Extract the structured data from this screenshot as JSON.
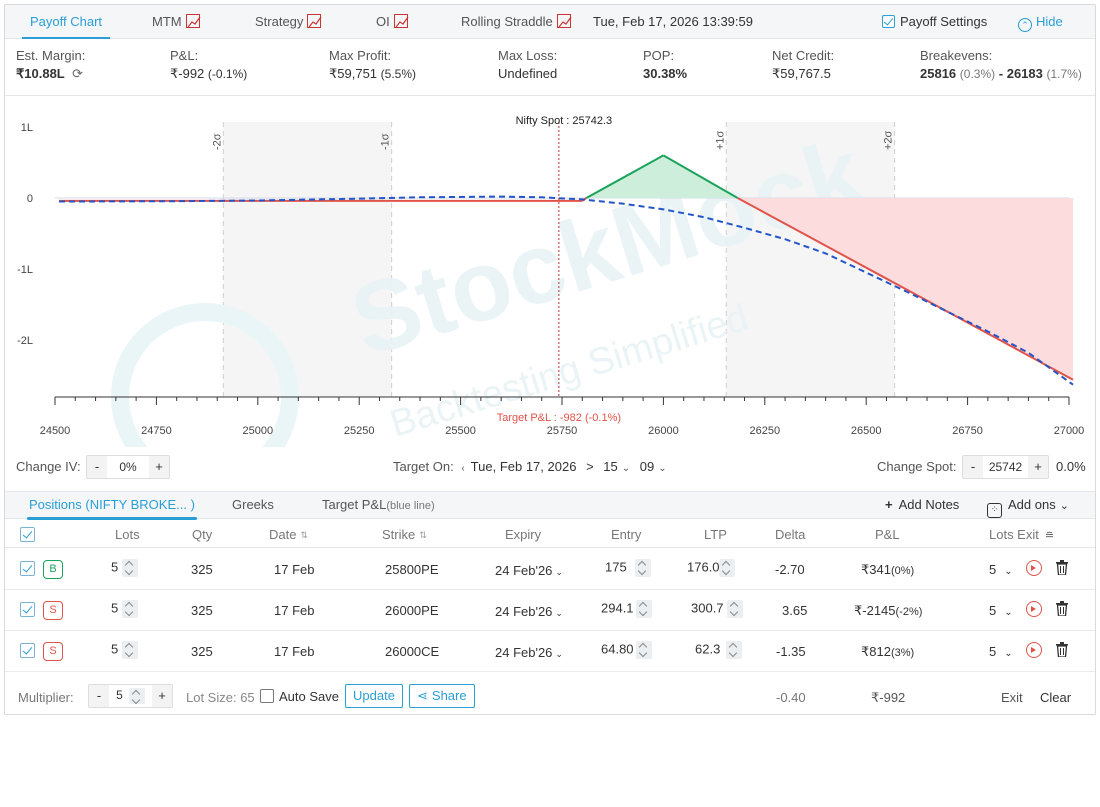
{
  "top_tabs": [
    {
      "label": "Payoff Chart"
    },
    {
      "label": "MTM"
    },
    {
      "label": "Strategy"
    },
    {
      "label": "OI"
    },
    {
      "label": "Rolling Straddle"
    }
  ],
  "datetime": "Tue, Feb 17, 2026 13:39:59",
  "payoff_settings_label": "Payoff Settings",
  "hide_label": "Hide",
  "stats": {
    "margin_label": "Est. Margin:",
    "margin_value": "₹10.88L",
    "pnl_label": "P&L:",
    "pnl_value": "₹-992",
    "pnl_pct": "(-0.1%)",
    "max_profit_label": "Max Profit:",
    "max_profit_value": "₹59,751",
    "max_profit_pct": "(5.5%)",
    "max_loss_label": "Max Loss:",
    "max_loss_value": "Undefined",
    "pop_label": "POP:",
    "pop_value": "30.38%",
    "net_credit_label": "Net Credit:",
    "net_credit_value": "₹59,767.5",
    "breakevens_label": "Breakevens:",
    "be_low": "25816",
    "be_low_pct": "(0.3%)",
    "be_sep": "-",
    "be_high": "26183",
    "be_high_pct": "(1.7%)"
  },
  "chart_data": {
    "type": "line",
    "spot_label": "Nifty Spot : 25742.3",
    "spot": 25742.3,
    "target_label": "Target P&L : -982 (-0.1%)",
    "x_ticks": [
      24500,
      24750,
      25000,
      25250,
      25500,
      25750,
      26000,
      26250,
      26500,
      26750,
      27000
    ],
    "y_ticks": [
      1,
      0,
      -1,
      -2
    ],
    "y_tick_labels": [
      "1L",
      "0",
      "-1L",
      "-2L"
    ],
    "xlim": [
      24500,
      27000
    ],
    "ylim": [
      -2.8,
      1.0
    ],
    "sigma_labels": [
      "-2σ",
      "-1σ",
      "+1σ",
      "+2σ"
    ],
    "sigma_x": [
      24915,
      25330,
      26155,
      26570
    ],
    "watermark": "StockMock",
    "watermark_sub": "Backtesting Simplified",
    "series": [
      {
        "values": [
          [
            24510,
            -0.04
          ],
          [
            25800,
            -0.04
          ],
          [
            25810,
            0.0
          ],
          [
            26000,
            0.6
          ],
          [
            26183,
            0.0
          ],
          [
            27010,
            -2.56
          ]
        ]
      },
      {
        "values": [
          [
            24510,
            -0.05
          ],
          [
            24800,
            -0.045
          ],
          [
            25000,
            -0.035
          ],
          [
            25200,
            -0.015
          ],
          [
            25400,
            0.01
          ],
          [
            25600,
            0.02
          ],
          [
            25700,
            0.01
          ],
          [
            25800,
            -0.02
          ],
          [
            25900,
            -0.08
          ],
          [
            26000,
            -0.16
          ],
          [
            26100,
            -0.27
          ],
          [
            26200,
            -0.42
          ],
          [
            26300,
            -0.58
          ],
          [
            26400,
            -0.78
          ],
          [
            26500,
            -1.05
          ],
          [
            26600,
            -1.32
          ],
          [
            26700,
            -1.6
          ],
          [
            26800,
            -1.88
          ],
          [
            26900,
            -2.18
          ],
          [
            27010,
            -2.63
          ]
        ]
      }
    ]
  },
  "controls": {
    "change_iv_label": "Change IV:",
    "iv_value": "0%",
    "target_on_label": "Target On:",
    "target_date": "Tue, Feb 17, 2026",
    "target_sep": ">",
    "target_hour": "15",
    "target_min": "09",
    "change_spot_label": "Change Spot:",
    "spot_value": "25742",
    "spot_pct": "0.0%",
    "minus": "-",
    "plus": "+"
  },
  "bottom_tabs": {
    "positions": "Positions (NIFTY BROKE... )",
    "greeks": "Greeks",
    "target_pnl": "Target P&L",
    "target_pnl_sub": "(blue line)",
    "add_notes": "Add Notes",
    "add_ons": "Add ons"
  },
  "table": {
    "headers": {
      "lots": "Lots",
      "qty": "Qty",
      "date": "Date",
      "strike": "Strike",
      "expiry": "Expiry",
      "entry": "Entry",
      "ltp": "LTP",
      "delta": "Delta",
      "pnl": "P&L",
      "lots_exit": "Lots Exit"
    },
    "rows": [
      {
        "side": "B",
        "lots": "5",
        "qty": "325",
        "date": "17 Feb",
        "strike": "25800PE",
        "expiry": "24 Feb'26",
        "entry": "175",
        "ltp": "176.0",
        "delta": "-2.70",
        "pnl": "₹341",
        "pnl_pct": "(0%)",
        "exit_lots": "5"
      },
      {
        "side": "S",
        "lots": "5",
        "qty": "325",
        "date": "17 Feb",
        "strike": "26000PE",
        "expiry": "24 Feb'26",
        "entry": "294.1",
        "ltp": "300.7",
        "delta": "3.65",
        "pnl": "₹-2145",
        "pnl_pct": "(-2%)",
        "exit_lots": "5"
      },
      {
        "side": "S",
        "lots": "5",
        "qty": "325",
        "date": "17 Feb",
        "strike": "26000CE",
        "expiry": "24 Feb'26",
        "entry": "64.80",
        "ltp": "62.3",
        "delta": "-1.35",
        "pnl": "₹812",
        "pnl_pct": "(3%)",
        "exit_lots": "5"
      }
    ]
  },
  "footer": {
    "multiplier_label": "Multiplier:",
    "multiplier_value": "5",
    "lot_size": "Lot Size: 65",
    "auto_save": "Auto Save",
    "update": "Update",
    "share": "Share",
    "total_delta": "-0.40",
    "total_pnl": "₹-992",
    "exit": "Exit",
    "clear": "Clear"
  },
  "colors": {
    "accent": "#2a9fd6",
    "profit": "#1aa35a",
    "loss": "#e0534a",
    "target_line": "#2456c8"
  }
}
